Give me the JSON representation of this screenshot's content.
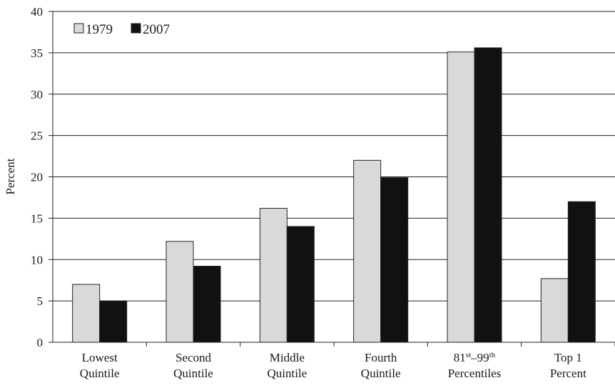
{
  "chart_data": {
    "type": "bar",
    "title": "",
    "xlabel": "",
    "ylabel": "Percent",
    "ylim": [
      0,
      40
    ],
    "yticks": [
      0,
      5,
      10,
      15,
      20,
      25,
      30,
      35,
      40
    ],
    "grid": true,
    "legend_position": "top-left",
    "categories": [
      {
        "lines": [
          {
            "text": "Lowest"
          },
          {
            "text": "Quintile"
          }
        ]
      },
      {
        "lines": [
          {
            "text": "Second"
          },
          {
            "text": "Quintile"
          }
        ]
      },
      {
        "lines": [
          {
            "text": "Middle"
          },
          {
            "text": "Quintile"
          }
        ]
      },
      {
        "lines": [
          {
            "text": "Fourth"
          },
          {
            "text": "Quintile"
          }
        ]
      },
      {
        "lines": [
          {
            "text": "81",
            "sup": "st",
            "text2": "–99",
            "sup2": "th"
          },
          {
            "text": "Percentiles"
          }
        ]
      },
      {
        "lines": [
          {
            "text": "Top 1"
          },
          {
            "text": "Percent"
          }
        ]
      }
    ],
    "series": [
      {
        "name": "1979",
        "color": "#d9d9d9",
        "values": [
          7.0,
          12.2,
          16.2,
          22.0,
          35.1,
          7.7
        ]
      },
      {
        "name": "2007",
        "color": "#111111",
        "values": [
          5.0,
          9.2,
          14.0,
          19.9,
          35.6,
          17.0
        ]
      }
    ]
  }
}
